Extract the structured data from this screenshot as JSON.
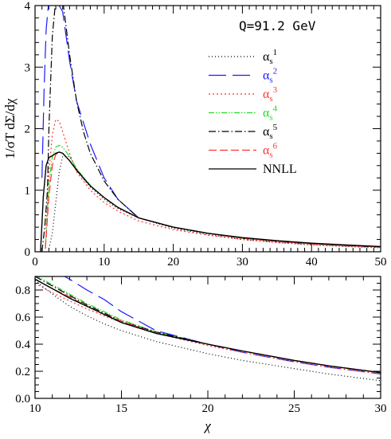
{
  "chart_data": [
    {
      "type": "line",
      "annotation": "Q=91.2  GeV",
      "ylabel": "1/σT dΣ/dχ",
      "xlim": [
        0,
        50
      ],
      "ylim": [
        0,
        4
      ],
      "xticks": [
        "0",
        "10",
        "20",
        "30",
        "40",
        "50"
      ],
      "yticks": [
        "0",
        "1",
        "2",
        "3",
        "4"
      ],
      "legend_position": "top-right",
      "series": [
        {
          "name": "αs1",
          "base": "α",
          "sub": "s",
          "sup": "1",
          "color": "#000000",
          "dash": "1 3",
          "x": [
            2,
            2.5,
            3,
            3.5,
            4,
            5,
            6,
            7,
            8,
            10,
            12,
            15,
            20,
            25,
            30,
            35,
            40,
            45,
            50
          ],
          "y": [
            0.05,
            0.3,
            0.8,
            1.3,
            1.55,
            1.55,
            1.35,
            1.18,
            1.05,
            0.85,
            0.7,
            0.55,
            0.38,
            0.28,
            0.2,
            0.15,
            0.11,
            0.085,
            0.065
          ]
        },
        {
          "name": "αs2",
          "base": "α",
          "sub": "s",
          "sup": "2",
          "color": "#1a1aff",
          "dash": "22 8",
          "x": [
            1.0,
            1.3,
            1.6,
            2,
            2.5,
            3,
            4,
            5,
            6,
            8,
            10,
            12,
            15,
            20,
            25,
            30,
            35,
            40,
            45,
            50
          ],
          "y": [
            1.2,
            2.6,
            3.6,
            4.1,
            4.1,
            4.1,
            3.9,
            3.1,
            2.45,
            1.75,
            1.2,
            0.85,
            0.55,
            0.4,
            0.3,
            0.22,
            0.17,
            0.13,
            0.1,
            0.08
          ]
        },
        {
          "name": "αs3",
          "base": "α",
          "sub": "s",
          "sup": "3",
          "color": "#ff3333",
          "dash": "2 3",
          "x": [
            1.5,
            2,
            2.5,
            3,
            3.5,
            4,
            5,
            6,
            8,
            10,
            12,
            15,
            20,
            25,
            30,
            35,
            40,
            45,
            50
          ],
          "y": [
            0.05,
            1.3,
            1.9,
            2.15,
            2.12,
            1.95,
            1.6,
            1.3,
            1.0,
            0.8,
            0.66,
            0.5,
            0.36,
            0.27,
            0.2,
            0.15,
            0.12,
            0.09,
            0.07
          ]
        },
        {
          "name": "αs4",
          "base": "α",
          "sub": "s",
          "sup": "4",
          "color": "#22dd22",
          "dash": "7 2 1.5 2 1.5 2",
          "x": [
            1.5,
            2,
            2.5,
            3,
            3.5,
            4,
            5,
            6,
            8,
            10,
            12,
            15,
            20,
            25,
            30,
            35,
            40,
            45,
            50
          ],
          "y": [
            0.05,
            1.1,
            1.55,
            1.7,
            1.73,
            1.7,
            1.55,
            1.35,
            1.08,
            0.88,
            0.72,
            0.55,
            0.4,
            0.3,
            0.22,
            0.17,
            0.13,
            0.1,
            0.08
          ]
        },
        {
          "name": "αs5",
          "base": "α",
          "sub": "s",
          "sup": "5",
          "color": "#000000",
          "dash": "9 3 1.5 3",
          "x": [
            1.0,
            1.4,
            1.8,
            2,
            2.5,
            3,
            3.5,
            4,
            5,
            6,
            7,
            8,
            10,
            12,
            15,
            20,
            25,
            30,
            35,
            40,
            45,
            50
          ],
          "y": [
            0.0,
            0.4,
            1.0,
            2.0,
            3.5,
            4.1,
            4.1,
            4.1,
            3.2,
            2.45,
            1.95,
            1.6,
            1.15,
            0.85,
            0.55,
            0.4,
            0.3,
            0.22,
            0.17,
            0.13,
            0.1,
            0.08
          ]
        },
        {
          "name": "αs6",
          "base": "α",
          "sub": "s",
          "sup": "6",
          "color": "#ff3333",
          "dash": "10 4",
          "x": [
            1.5,
            2,
            2.5,
            3,
            3.5,
            4,
            5,
            6,
            8,
            10,
            12,
            15,
            20,
            25,
            30,
            35,
            40,
            45,
            50
          ],
          "y": [
            0.05,
            0.9,
            1.4,
            1.58,
            1.62,
            1.6,
            1.48,
            1.32,
            1.07,
            0.88,
            0.72,
            0.55,
            0.4,
            0.3,
            0.22,
            0.17,
            0.13,
            0.1,
            0.08
          ]
        },
        {
          "name": "NNLL",
          "base": "NNLL",
          "sub": "",
          "sup": "",
          "color": "#000000",
          "dash": "",
          "x": [
            0.8,
            1.2,
            1.6,
            2,
            2.5,
            3,
            3.5,
            4,
            5,
            6,
            8,
            10,
            12,
            15,
            20,
            25,
            30,
            35,
            40,
            45,
            50
          ],
          "y": [
            0.0,
            0.9,
            1.4,
            1.53,
            1.56,
            1.6,
            1.62,
            1.6,
            1.48,
            1.33,
            1.07,
            0.88,
            0.72,
            0.55,
            0.4,
            0.3,
            0.23,
            0.18,
            0.14,
            0.11,
            0.085
          ]
        }
      ]
    },
    {
      "type": "line",
      "xlabel": "χ",
      "xlim": [
        10,
        30
      ],
      "ylim": [
        0,
        0.9
      ],
      "xticks": [
        "10",
        "15",
        "20",
        "25",
        "30"
      ],
      "yticks": [
        "0.0",
        "0.2",
        "0.4",
        "0.6",
        "0.8"
      ],
      "series": [
        {
          "name": "αs1",
          "color": "#000000",
          "dash": "1 3",
          "x": [
            10,
            11,
            12,
            13,
            14,
            15,
            17,
            20,
            22,
            25,
            27,
            30
          ],
          "y": [
            0.87,
            0.77,
            0.68,
            0.61,
            0.55,
            0.5,
            0.42,
            0.33,
            0.28,
            0.22,
            0.18,
            0.13
          ]
        },
        {
          "name": "αs2",
          "color": "#1a1aff",
          "dash": "22 8",
          "x": [
            10,
            11,
            12,
            13,
            14,
            15,
            17,
            20,
            22,
            25,
            27,
            30
          ],
          "y": [
            1.0,
            0.95,
            0.88,
            0.8,
            0.73,
            0.64,
            0.5,
            0.4,
            0.34,
            0.27,
            0.23,
            0.18
          ]
        },
        {
          "name": "αs3",
          "color": "#ff3333",
          "dash": "2 3",
          "x": [
            10,
            11,
            12,
            13,
            14,
            15,
            17,
            20,
            22,
            25,
            27,
            30
          ],
          "y": [
            0.85,
            0.78,
            0.72,
            0.66,
            0.61,
            0.56,
            0.48,
            0.39,
            0.34,
            0.27,
            0.23,
            0.18
          ]
        },
        {
          "name": "αs4",
          "color": "#22dd22",
          "dash": "7 2 1.5 2 1.5 2",
          "x": [
            10,
            11,
            12,
            13,
            14,
            15,
            17,
            20,
            22,
            25,
            27,
            30
          ],
          "y": [
            0.91,
            0.84,
            0.77,
            0.7,
            0.64,
            0.58,
            0.49,
            0.4,
            0.35,
            0.28,
            0.24,
            0.19
          ]
        },
        {
          "name": "αs5",
          "color": "#000000",
          "dash": "9 3 1.5 3",
          "x": [
            10,
            11,
            12,
            13,
            14,
            15,
            17,
            20,
            22,
            25,
            27,
            30
          ],
          "y": [
            0.9,
            0.83,
            0.76,
            0.69,
            0.63,
            0.57,
            0.49,
            0.4,
            0.35,
            0.28,
            0.24,
            0.19
          ]
        },
        {
          "name": "αs6",
          "color": "#ff3333",
          "dash": "10 4",
          "x": [
            10,
            11,
            12,
            13,
            14,
            15,
            17,
            20,
            22,
            25,
            27,
            30
          ],
          "y": [
            0.88,
            0.81,
            0.75,
            0.68,
            0.62,
            0.57,
            0.48,
            0.4,
            0.35,
            0.28,
            0.24,
            0.19
          ]
        },
        {
          "name": "NNLL",
          "color": "#000000",
          "dash": "",
          "x": [
            10,
            11,
            12,
            13,
            14,
            15,
            17,
            20,
            22,
            25,
            27,
            30
          ],
          "y": [
            0.88,
            0.81,
            0.74,
            0.68,
            0.62,
            0.56,
            0.48,
            0.4,
            0.35,
            0.28,
            0.24,
            0.19
          ]
        }
      ]
    }
  ]
}
